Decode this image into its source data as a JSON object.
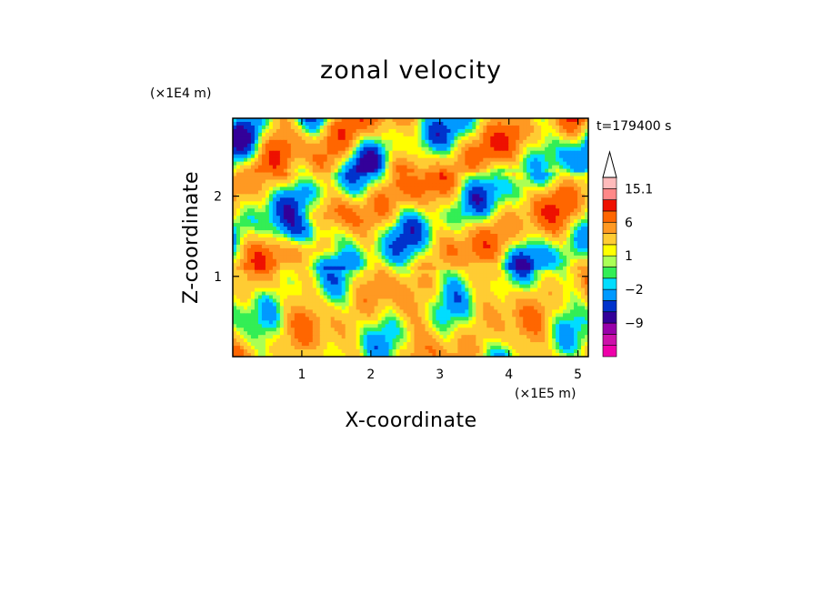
{
  "chart_data": {
    "type": "heatmap",
    "title": "zonal velocity",
    "xlabel": "X-coordinate",
    "ylabel": "Z-coordinate",
    "x_unit": "(×1E5 m)",
    "y_unit": "(×1E4 m)",
    "time_label": "t=179400 s",
    "xlim": [
      0,
      5.15
    ],
    "ylim": [
      0,
      2.97
    ],
    "x_ticks": [
      "1",
      "2",
      "3",
      "4",
      "5"
    ],
    "x_tick_values": [
      1,
      2,
      3,
      4,
      5
    ],
    "y_ticks": [
      "1",
      "2"
    ],
    "y_tick_values": [
      1,
      2
    ],
    "colorbar": {
      "labels": [
        "15.1",
        "6",
        "1",
        "−2",
        "−9"
      ],
      "label_values": [
        15.1,
        6,
        1,
        -2,
        -9
      ],
      "levels": [
        -16,
        -12,
        -9,
        -6,
        -4,
        -2,
        -1,
        0,
        1,
        2,
        4,
        6,
        9,
        12,
        15.1
      ],
      "colors": [
        "#ee00aa",
        "#cc11aa",
        "#9900aa",
        "#330099",
        "#0033cc",
        "#0099ff",
        "#00ddff",
        "#33ee55",
        "#aaff55",
        "#ffff00",
        "#ffcc33",
        "#ff9922",
        "#ff6600",
        "#ee1100",
        "#ff8888",
        "#ffbbbb"
      ],
      "extend": "max"
    },
    "grid": false
  }
}
